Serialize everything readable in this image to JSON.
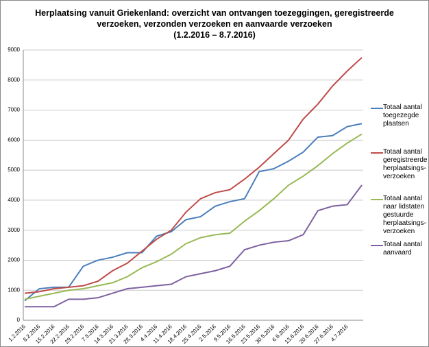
{
  "chart_data": {
    "type": "line",
    "title": "Herplaatsing vanuit Griekenland: overzicht van ontvangen toezeggingen, geregistreerde\nverzoeken, verzonden verzoeken en aanvaarde verzoeken\n(1.2.2016 – 8.7.2016)",
    "categories": [
      "1.2.2016",
      "8.2.2016",
      "15.2.2016",
      "22.2.2016",
      "29.2.2016",
      "7.3.2016",
      "14.3.2016",
      "21.3.2016",
      "28.3.2016",
      "4.4.2016",
      "11.4.2016",
      "18.4.2016",
      "25.4.2016",
      "2.5.2016",
      "9.5.2016",
      "16.5.2016",
      "23.5.2016",
      "30.5.2016",
      "6.6.2016",
      "13.6.2016",
      "20.6.2016",
      "27.6.2016",
      "4.7.2016",
      null
    ],
    "series": [
      {
        "name": "Totaal aantal\ntoegezegde\nplaatsen",
        "color": "#4a7ebb",
        "values": [
          650,
          1050,
          1100,
          1100,
          1800,
          2000,
          2100,
          2250,
          2250,
          2800,
          2950,
          3350,
          3450,
          3800,
          3950,
          4050,
          4950,
          5050,
          5300,
          5600,
          6100,
          6150,
          6450,
          6550
        ]
      },
      {
        "name": "Totaal aantal\ngeregistreerde\nherplaatsings-\nverzoeken",
        "color": "#be4b48",
        "values": [
          900,
          950,
          1050,
          1100,
          1150,
          1300,
          1650,
          1900,
          2300,
          2700,
          3000,
          3600,
          4050,
          4250,
          4350,
          4700,
          5100,
          5550,
          6000,
          6700,
          7200,
          7800,
          8300,
          8750
        ]
      },
      {
        "name": "Totaal aantal\nnaar lidstaten\ngestuurde\nherplaatsings-\nverzoeken",
        "color": "#98b954",
        "values": [
          700,
          800,
          900,
          1000,
          1050,
          1150,
          1250,
          1450,
          1750,
          1950,
          2200,
          2550,
          2750,
          2850,
          2900,
          3300,
          3650,
          4050,
          4500,
          4800,
          5150,
          5550,
          5900,
          6200
        ]
      },
      {
        "name": "Totaal aantal\naanvaard",
        "color": "#7d60a0",
        "values": [
          450,
          450,
          450,
          700,
          700,
          750,
          900,
          1050,
          1100,
          1150,
          1200,
          1450,
          1550,
          1650,
          1800,
          2350,
          2500,
          2600,
          2650,
          2850,
          3650,
          3800,
          3850,
          4500
        ]
      }
    ],
    "ylim": [
      0,
      9000
    ],
    "yticks": [
      0,
      1000,
      2000,
      3000,
      4000,
      5000,
      6000,
      7000,
      8000,
      9000
    ],
    "grid": true
  }
}
